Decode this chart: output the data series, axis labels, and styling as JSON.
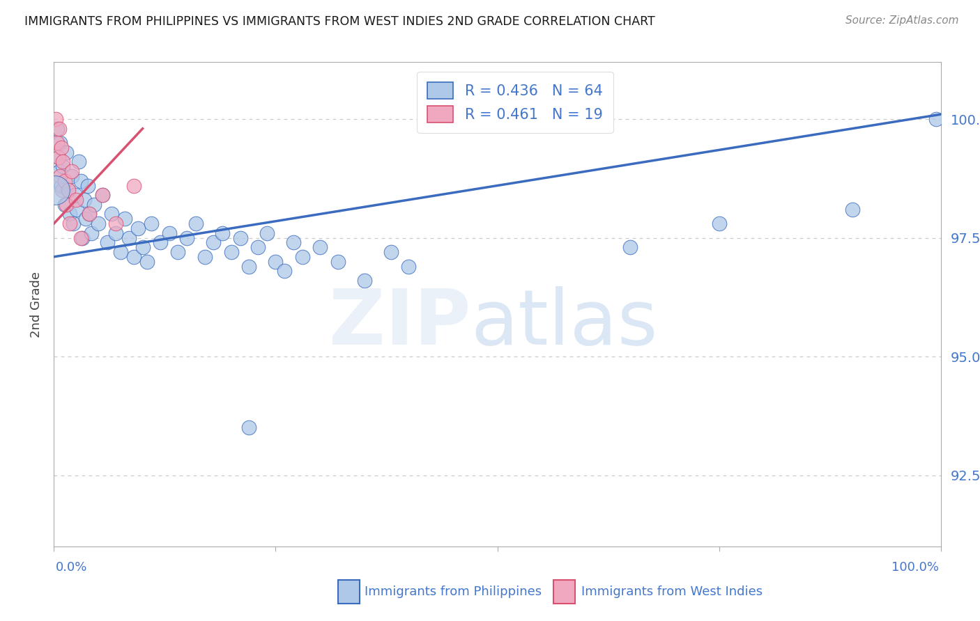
{
  "title": "IMMIGRANTS FROM PHILIPPINES VS IMMIGRANTS FROM WEST INDIES 2ND GRADE CORRELATION CHART",
  "source": "Source: ZipAtlas.com",
  "ylabel": "2nd Grade",
  "y_ticks": [
    92.5,
    95.0,
    97.5,
    100.0
  ],
  "y_tick_labels": [
    "92.5%",
    "95.0%",
    "97.5%",
    "100.0%"
  ],
  "x_range": [
    0.0,
    100.0
  ],
  "y_range": [
    91.0,
    101.2
  ],
  "blue_R": 0.436,
  "blue_N": 64,
  "pink_R": 0.461,
  "pink_N": 19,
  "blue_color": "#adc8e8",
  "pink_color": "#f0a8c0",
  "line_blue": "#3a6bbf",
  "line_pink": "#d95070",
  "watermark_zip": "ZIP",
  "watermark_atlas": "atlas",
  "blue_scatter": [
    [
      0.4,
      99.8
    ],
    [
      0.5,
      99.2
    ],
    [
      0.6,
      98.9
    ],
    [
      0.7,
      99.5
    ],
    [
      0.8,
      98.6
    ],
    [
      1.0,
      99.0
    ],
    [
      1.2,
      98.2
    ],
    [
      1.4,
      99.3
    ],
    [
      1.6,
      98.5
    ],
    [
      1.8,
      98.0
    ],
    [
      2.0,
      98.8
    ],
    [
      2.2,
      97.8
    ],
    [
      2.4,
      98.4
    ],
    [
      2.6,
      98.1
    ],
    [
      2.8,
      99.1
    ],
    [
      3.0,
      98.7
    ],
    [
      3.2,
      97.5
    ],
    [
      3.4,
      98.3
    ],
    [
      3.6,
      97.9
    ],
    [
      3.8,
      98.6
    ],
    [
      4.0,
      98.0
    ],
    [
      4.2,
      97.6
    ],
    [
      4.5,
      98.2
    ],
    [
      5.0,
      97.8
    ],
    [
      5.5,
      98.4
    ],
    [
      6.0,
      97.4
    ],
    [
      6.5,
      98.0
    ],
    [
      7.0,
      97.6
    ],
    [
      7.5,
      97.2
    ],
    [
      8.0,
      97.9
    ],
    [
      8.5,
      97.5
    ],
    [
      9.0,
      97.1
    ],
    [
      9.5,
      97.7
    ],
    [
      10.0,
      97.3
    ],
    [
      10.5,
      97.0
    ],
    [
      11.0,
      97.8
    ],
    [
      12.0,
      97.4
    ],
    [
      13.0,
      97.6
    ],
    [
      14.0,
      97.2
    ],
    [
      15.0,
      97.5
    ],
    [
      16.0,
      97.8
    ],
    [
      17.0,
      97.1
    ],
    [
      18.0,
      97.4
    ],
    [
      19.0,
      97.6
    ],
    [
      20.0,
      97.2
    ],
    [
      21.0,
      97.5
    ],
    [
      22.0,
      96.9
    ],
    [
      23.0,
      97.3
    ],
    [
      24.0,
      97.6
    ],
    [
      25.0,
      97.0
    ],
    [
      26.0,
      96.8
    ],
    [
      27.0,
      97.4
    ],
    [
      28.0,
      97.1
    ],
    [
      30.0,
      97.3
    ],
    [
      32.0,
      97.0
    ],
    [
      35.0,
      96.6
    ],
    [
      38.0,
      97.2
    ],
    [
      40.0,
      96.9
    ],
    [
      22.0,
      93.5
    ],
    [
      65.0,
      97.3
    ],
    [
      75.0,
      97.8
    ],
    [
      90.0,
      98.1
    ],
    [
      99.5,
      100.0
    ]
  ],
  "pink_scatter": [
    [
      0.2,
      100.0
    ],
    [
      0.4,
      99.5
    ],
    [
      0.5,
      99.2
    ],
    [
      0.6,
      99.8
    ],
    [
      0.7,
      98.8
    ],
    [
      0.8,
      99.4
    ],
    [
      0.9,
      98.5
    ],
    [
      1.0,
      99.1
    ],
    [
      1.2,
      98.7
    ],
    [
      1.4,
      98.2
    ],
    [
      1.6,
      98.5
    ],
    [
      1.8,
      97.8
    ],
    [
      2.0,
      98.9
    ],
    [
      2.5,
      98.3
    ],
    [
      3.0,
      97.5
    ],
    [
      4.0,
      98.0
    ],
    [
      5.5,
      98.4
    ],
    [
      7.0,
      97.8
    ],
    [
      9.0,
      98.6
    ]
  ],
  "big_blue_x": 0.15,
  "big_blue_y": 98.5,
  "background_color": "#ffffff",
  "grid_color": "#cccccc",
  "tick_color": "#4477cc",
  "axis_color": "#aaaaaa",
  "legend_label_blue": "Immigrants from Philippines",
  "legend_label_pink": "Immigrants from West Indies"
}
